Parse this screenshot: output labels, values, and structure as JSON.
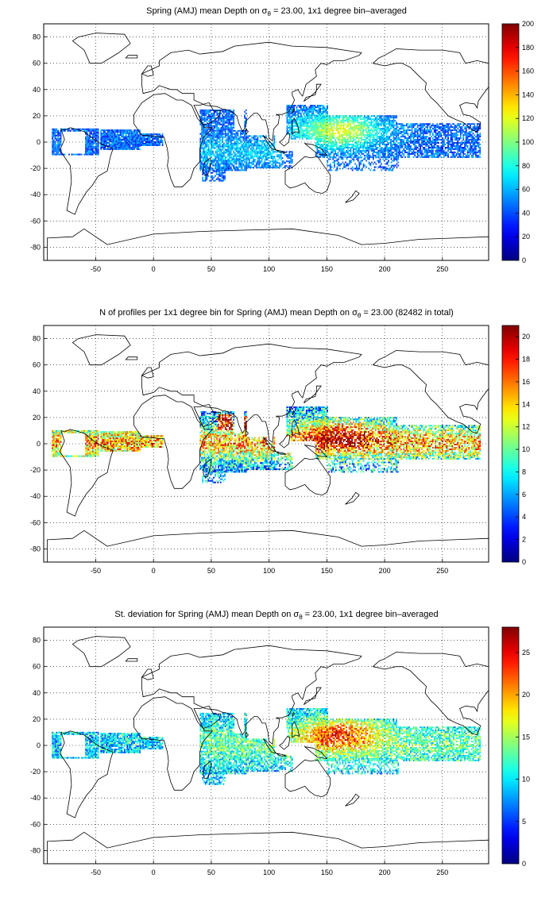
{
  "panels": [
    {
      "title_prefix": "Spring (AMJ) mean Depth on ",
      "title_symbol": "σ",
      "title_sub": "θ",
      "title_suffix": " = 23.00, 1x1 degree bin–averaged",
      "colorbar": {
        "min": 0,
        "max": 200,
        "ticks": [
          "0",
          "20",
          "40",
          "60",
          "80",
          "100",
          "120",
          "140",
          "160",
          "180",
          "200"
        ]
      },
      "field": "depth"
    },
    {
      "title_prefix": "N of profiles per 1x1 degree bin for Spring (AMJ) mean Depth on ",
      "title_symbol": "σ",
      "title_sub": "θ",
      "title_suffix": " = 23.00 (82482 in total)",
      "colorbar": {
        "min": 0,
        "max": 21,
        "ticks": [
          "0",
          "2",
          "4",
          "6",
          "8",
          "10",
          "12",
          "14",
          "16",
          "18",
          "20"
        ]
      },
      "field": "count"
    },
    {
      "title_prefix": "St. deviation for Spring (AMJ) mean Depth on ",
      "title_symbol": "σ",
      "title_sub": "θ",
      "title_suffix": " = 23.00, 1x1 degree bin–averaged",
      "colorbar": {
        "min": 0,
        "max": 28,
        "ticks": [
          "0",
          "5",
          "10",
          "15",
          "20",
          "25"
        ]
      },
      "field": "std"
    }
  ],
  "map_axes": {
    "x_ticks": [
      "-50",
      "0",
      "50",
      "100",
      "150",
      "200",
      "250"
    ],
    "y_ticks": [
      "80",
      "60",
      "40",
      "20",
      "0",
      "-20",
      "-40",
      "-60",
      "-80"
    ],
    "x_range": [
      -95,
      290
    ],
    "y_range": [
      -90,
      90
    ],
    "grid": "dotted"
  },
  "colors": {
    "coast": "#000000",
    "grid": "#000000",
    "background": "#ffffff"
  }
}
